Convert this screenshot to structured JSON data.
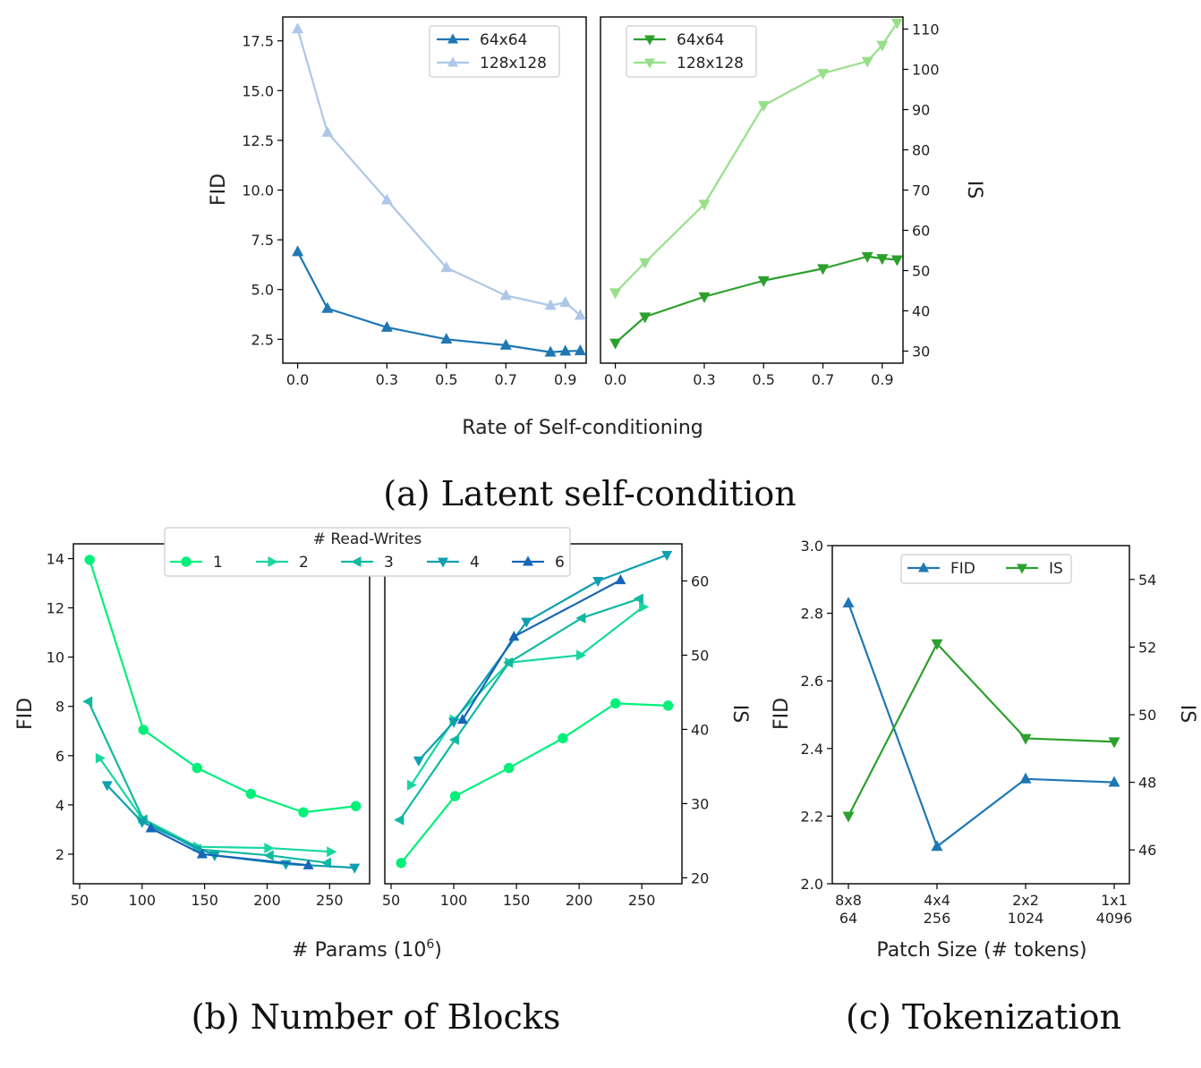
{
  "captions": {
    "a": "(a) Latent self-condition",
    "b": "(b) Number of Blocks",
    "c": "(c) Tokenization"
  },
  "labels": {
    "a_xlabel": "Rate of Self-conditioning",
    "b_xlabel": "# Params (10",
    "b_xlabel_exp": "6",
    "b_xlabel_end": ")",
    "c_xlabel": "Patch Size (# tokens)",
    "b_legend_title": "# Read-Writes"
  },
  "colors": {
    "dark_blue": "#1f77b4",
    "light_blue": "#aec7e8",
    "dark_green": "#2ca02c",
    "light_green": "#98df8a",
    "rw1": "#00f07a",
    "rw2": "#17d7a0",
    "rw3": "#12b8a0",
    "rw4": "#0d9fb0",
    "rw6": "#1666b8"
  },
  "chart_data": [
    {
      "id": "a-fid",
      "type": "line",
      "xlabel": "Rate of Self-conditioning",
      "ylabel": "FID",
      "xlim": [
        -0.05,
        0.97
      ],
      "ylim": [
        1.3,
        18.7
      ],
      "xticks": [
        "0.0",
        "0.3",
        "0.5",
        "0.7",
        "0.9"
      ],
      "yticks": [
        "2.5",
        "5.0",
        "7.5",
        "10.0",
        "12.5",
        "15.0",
        "17.5"
      ],
      "legend": "top-right",
      "series": [
        {
          "name": "64x64",
          "x": [
            0.0,
            0.1,
            0.3,
            0.5,
            0.7,
            0.85,
            0.9,
            0.95
          ],
          "y": [
            6.9,
            4.05,
            3.1,
            2.5,
            2.2,
            1.85,
            1.9,
            1.92
          ]
        },
        {
          "name": "128x128",
          "x": [
            0.0,
            0.1,
            0.3,
            0.5,
            0.7,
            0.85,
            0.9,
            0.95
          ],
          "y": [
            18.1,
            12.9,
            9.5,
            6.1,
            4.7,
            4.2,
            4.35,
            3.7
          ]
        }
      ]
    },
    {
      "id": "a-is",
      "type": "line",
      "xlabel": "Rate of Self-conditioning",
      "ylabel": "IS",
      "xlim": [
        -0.05,
        0.97
      ],
      "ylim": [
        27,
        113
      ],
      "xticks": [
        "0.0",
        "0.3",
        "0.5",
        "0.7",
        "0.9"
      ],
      "yticks": [
        "30",
        "40",
        "50",
        "60",
        "70",
        "80",
        "90",
        "100",
        "110"
      ],
      "legend": "top-left",
      "series": [
        {
          "name": "64x64",
          "x": [
            0.0,
            0.1,
            0.3,
            0.5,
            0.7,
            0.85,
            0.9,
            0.95
          ],
          "y": [
            32,
            38.5,
            43.5,
            47.5,
            50.5,
            53.5,
            53,
            52.7
          ]
        },
        {
          "name": "128x128",
          "x": [
            0.0,
            0.1,
            0.3,
            0.5,
            0.7,
            0.85,
            0.9,
            0.95
          ],
          "y": [
            44.5,
            52,
            66.5,
            91,
            99,
            102,
            106,
            111.5
          ]
        }
      ]
    },
    {
      "id": "b-fid",
      "type": "line",
      "xlabel": "# Params (10^6)",
      "ylabel": "FID",
      "xlim": [
        45,
        282
      ],
      "ylim": [
        0.8,
        14.6
      ],
      "xticks": [
        "50",
        "100",
        "150",
        "200",
        "250"
      ],
      "yticks": [
        "2",
        "4",
        "6",
        "8",
        "10",
        "12",
        "14"
      ],
      "legend": "top, title \"# Read-Writes\"",
      "series": [
        {
          "name": "1",
          "x": [
            58,
            101,
            144,
            187,
            229,
            271
          ],
          "y": [
            13.95,
            7.05,
            5.5,
            4.45,
            3.7,
            3.95
          ]
        },
        {
          "name": "2",
          "x": [
            66,
            100,
            144,
            201,
            251
          ],
          "y": [
            5.9,
            3.45,
            2.3,
            2.25,
            2.1
          ]
        },
        {
          "name": "3",
          "x": [
            57,
            101,
            144,
            202,
            248
          ],
          "y": [
            8.2,
            3.4,
            2.2,
            1.95,
            1.65
          ]
        },
        {
          "name": "4",
          "x": [
            72,
            100,
            158,
            215,
            270
          ],
          "y": [
            4.8,
            3.3,
            1.95,
            1.6,
            1.45
          ]
        },
        {
          "name": "6",
          "x": [
            107,
            148,
            233
          ],
          "y": [
            3.05,
            2.0,
            1.55
          ]
        }
      ]
    },
    {
      "id": "b-is",
      "type": "line",
      "xlabel": "# Params (10^6)",
      "ylabel": "IS",
      "xlim": [
        45,
        282
      ],
      "ylim": [
        19.2,
        65
      ],
      "xticks": [
        "50",
        "100",
        "150",
        "200",
        "250"
      ],
      "yticks": [
        "20",
        "30",
        "40",
        "50",
        "60"
      ],
      "series": [
        {
          "name": "1",
          "x": [
            58,
            101,
            144,
            187,
            229,
            271
          ],
          "y": [
            22,
            31,
            34.8,
            38.8,
            43.5,
            43.2
          ]
        },
        {
          "name": "2",
          "x": [
            66,
            100,
            144,
            201,
            251
          ],
          "y": [
            32.5,
            41.3,
            49,
            50,
            56.5
          ]
        },
        {
          "name": "3",
          "x": [
            57,
            101,
            144,
            202,
            248
          ],
          "y": [
            27.8,
            38.6,
            49,
            55,
            57.6
          ]
        },
        {
          "name": "4",
          "x": [
            72,
            100,
            158,
            215,
            270
          ],
          "y": [
            35.8,
            41,
            54.5,
            60,
            63.5
          ]
        },
        {
          "name": "6",
          "x": [
            107,
            148,
            233
          ],
          "y": [
            41.3,
            52.5,
            60.1
          ]
        }
      ]
    },
    {
      "id": "c",
      "type": "line",
      "xlabel": "Patch Size (# tokens)",
      "ylabel": "FID",
      "ylabel2": "IS",
      "categories": [
        "8x8\n64",
        "4x4\n256",
        "2x2\n1024",
        "1x1\n4096"
      ],
      "ylim": [
        2.0,
        3.0
      ],
      "y2lim": [
        45,
        55
      ],
      "yticks": [
        "2.0",
        "2.2",
        "2.4",
        "2.6",
        "2.8",
        "3.0"
      ],
      "y2ticks": [
        "46",
        "48",
        "50",
        "52",
        "54"
      ],
      "legend": "top-center",
      "series": [
        {
          "name": "FID",
          "axis": "left",
          "values": [
            2.83,
            2.11,
            2.31,
            2.3
          ]
        },
        {
          "name": "IS",
          "axis": "right",
          "values": [
            47.0,
            52.1,
            49.3,
            49.2
          ]
        }
      ]
    }
  ]
}
